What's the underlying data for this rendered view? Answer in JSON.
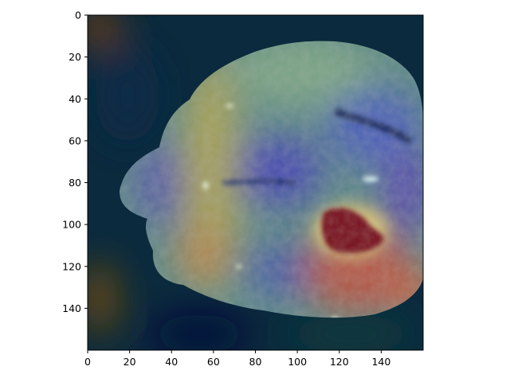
{
  "figure": {
    "x_ticks": [
      "0",
      "20",
      "40",
      "60",
      "80",
      "100",
      "120",
      "140"
    ],
    "y_ticks": [
      "0",
      "20",
      "40",
      "60",
      "80",
      "100",
      "120",
      "140"
    ],
    "x_range": [
      0,
      160
    ],
    "y_range": [
      0,
      160
    ],
    "y_inverted": true,
    "image_description_tag": "brain-mri-heatmap-overlay",
    "colormap": "jet"
  }
}
